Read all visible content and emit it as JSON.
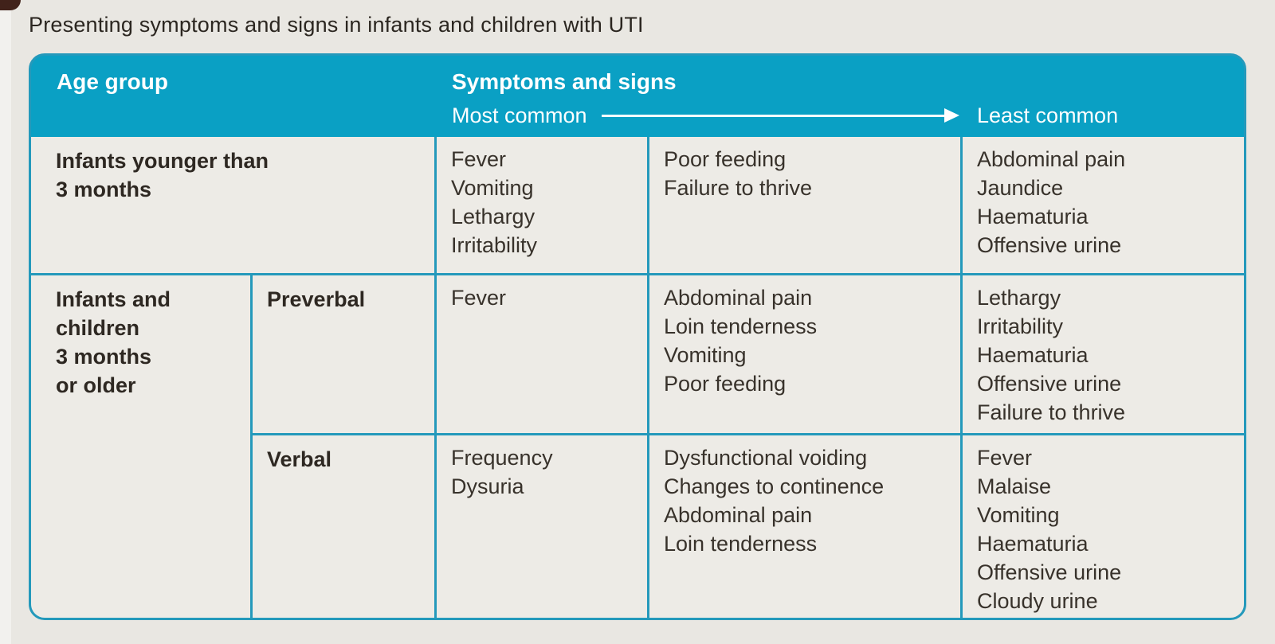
{
  "title": "Presenting symptoms and signs in infants and children with UTI",
  "table": {
    "header": {
      "age_group": "Age group",
      "symptoms_and_signs": "Symptoms and signs",
      "most_common": "Most common",
      "least_common": "Least common"
    },
    "rows": [
      {
        "age_group": [
          "Infants younger than",
          "3 months"
        ],
        "most_common": [
          "Fever",
          "Vomiting",
          "Lethargy",
          "Irritability"
        ],
        "common": [
          "Poor feeding",
          "Failure to thrive"
        ],
        "least_common": [
          "Abdominal pain",
          "Jaundice",
          "Haematuria",
          "Offensive urine"
        ]
      },
      {
        "age_group": [
          "Infants and",
          "children",
          "3 months",
          "or older"
        ],
        "verbal_status": "Preverbal",
        "most_common": [
          "Fever"
        ],
        "common": [
          "Abdominal pain",
          "Loin tenderness",
          "Vomiting",
          "Poor feeding"
        ],
        "least_common": [
          "Lethargy",
          "Irritability",
          "Haematuria",
          "Offensive urine",
          "Failure to thrive"
        ]
      },
      {
        "verbal_status": "Verbal",
        "most_common": [
          "Frequency",
          "Dysuria"
        ],
        "common": [
          "Dysfunctional voiding",
          "Changes to continence",
          "Abdominal pain",
          "Loin tenderness"
        ],
        "least_common": [
          "Fever",
          "Malaise",
          "Vomiting",
          "Haematuria",
          "Offensive urine",
          "Cloudy urine"
        ]
      }
    ]
  },
  "colors": {
    "header_teal": "#0aa0c4",
    "border_teal": "#2499bb",
    "page_background": "#e9e7e2",
    "cell_background": "#edebe6",
    "body_text": "#38322b",
    "header_text": "#ffffff"
  }
}
